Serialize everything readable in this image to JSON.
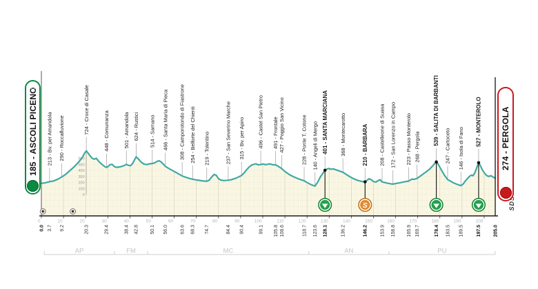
{
  "start": {
    "label": "185 - ASCOLI PICENO"
  },
  "finish": {
    "label": "274 - PERGOLA"
  },
  "branding": {
    "sds": "SDS"
  },
  "chart_data": {
    "type": "area",
    "title": "",
    "xlabel": "km",
    "ylabel": "elevation (m)",
    "xlim": [
      0,
      205.0
    ],
    "total_km_label": "205.0",
    "axis_scale_ticks": [
      "0",
      "10",
      "20",
      "30",
      "40",
      "50",
      "60",
      "70",
      "80",
      "90",
      "100",
      "110",
      "120",
      "130",
      "140",
      "150",
      "160",
      "170",
      "180",
      "190",
      "200"
    ],
    "elevation_ruler": {
      "at_km": 20.3,
      "values": [
        "600",
        "500",
        "400",
        "300",
        "200",
        "100",
        "0"
      ]
    },
    "km_marks": [
      {
        "km": 0.0,
        "text": "0.0",
        "bold": true
      },
      {
        "km": 3.7,
        "text": "3.7"
      },
      {
        "km": 9.2,
        "text": "9.2"
      },
      {
        "km": 20.3,
        "text": "20.3"
      },
      {
        "km": 29.4,
        "text": "29.4"
      },
      {
        "km": 38.4,
        "text": "38.4"
      },
      {
        "km": 42.8,
        "text": "42.8"
      },
      {
        "km": 50.1,
        "text": "50.1"
      },
      {
        "km": 56.0,
        "text": "56.0"
      },
      {
        "km": 63.6,
        "text": "63.6"
      },
      {
        "km": 68.3,
        "text": "68.3"
      },
      {
        "km": 74.7,
        "text": "74.7"
      },
      {
        "km": 84.4,
        "text": "84.4"
      },
      {
        "km": 90.4,
        "text": "90.4"
      },
      {
        "km": 99.1,
        "text": "99.1"
      },
      {
        "km": 105.8,
        "text": "105.8"
      },
      {
        "km": 108.6,
        "text": "108.6"
      },
      {
        "km": 118.7,
        "text": "118.7"
      },
      {
        "km": 123.6,
        "text": "123.6"
      },
      {
        "km": 128.1,
        "text": "128.1",
        "bold": true
      },
      {
        "km": 136.2,
        "text": "136.2"
      },
      {
        "km": 146.2,
        "text": "146.2",
        "bold": true
      },
      {
        "km": 153.9,
        "text": "153.9"
      },
      {
        "km": 158.8,
        "text": "158.8"
      },
      {
        "km": 165.9,
        "text": "165.9"
      },
      {
        "km": 169.7,
        "text": "169.7"
      },
      {
        "km": 178.4,
        "text": "178.4",
        "bold": true
      },
      {
        "km": 183.5,
        "text": "183.5"
      },
      {
        "km": 189.5,
        "text": "189.5"
      },
      {
        "km": 197.5,
        "text": "197.5",
        "bold": true
      },
      {
        "km": 205.0,
        "text": "205.0",
        "bold": true
      }
    ],
    "waypoints": [
      {
        "km": 3.7,
        "elev": 213,
        "label": "213 - Bv. per Amandola"
      },
      {
        "km": 9.2,
        "elev": 290,
        "label": "290 - Roccafluvione"
      },
      {
        "km": 20.3,
        "elev": 724,
        "label": "724 - Croce di Casale",
        "ruler": true
      },
      {
        "km": 29.4,
        "elev": 448,
        "label": "448 - Comunanza"
      },
      {
        "km": 38.4,
        "elev": 501,
        "label": "501 - Amandola"
      },
      {
        "km": 42.8,
        "elev": 624,
        "label": "624 - Rustici"
      },
      {
        "km": 50.1,
        "elev": 514,
        "label": "514 - Sarnano"
      },
      {
        "km": 56.0,
        "elev": 466,
        "label": "466 - Santa Maria di Pieca"
      },
      {
        "km": 63.6,
        "elev": 308,
        "label": "308 - Camporotondo di Fiastrone"
      },
      {
        "km": 68.3,
        "elev": 254,
        "label": "254 - Belforte del Chienti"
      },
      {
        "km": 74.7,
        "elev": 219,
        "label": "219 - Tolentino"
      },
      {
        "km": 84.4,
        "elev": 237,
        "label": "237 - San Severino Marche"
      },
      {
        "km": 90.4,
        "elev": 315,
        "label": "315 - Bv. per Apiro"
      },
      {
        "km": 99.1,
        "elev": 496,
        "label": "496 - Castel San Pietro"
      },
      {
        "km": 105.8,
        "elev": 491,
        "label": "491 - Frontale"
      },
      {
        "km": 108.6,
        "elev": 427,
        "label": "427 - Poggio San Vicino"
      },
      {
        "km": 118.7,
        "elev": 228,
        "label": "228 - Ponte T. Cotone"
      },
      {
        "km": 123.6,
        "elev": 140,
        "label": "140 - Angeli di Mergo"
      },
      {
        "km": 128.1,
        "elev": 401,
        "label": "401 - SANTA MARCIANA",
        "bold": true,
        "marker": "gpm"
      },
      {
        "km": 136.2,
        "elev": 368,
        "label": "368 - Montecarotto"
      },
      {
        "km": 146.2,
        "elev": 210,
        "label": "210 - BARBARA",
        "bold": true,
        "marker": "sprint"
      },
      {
        "km": 153.9,
        "elev": 208,
        "label": "208 - Castelleone di Suasa"
      },
      {
        "km": 158.8,
        "elev": 172,
        "label": "172 - San Lorenzo in Campo"
      },
      {
        "km": 165.9,
        "elev": 223,
        "label": "223 - Passo Monterolo"
      },
      {
        "km": 169.7,
        "elev": 268,
        "label": "268 - Pergola"
      },
      {
        "km": 178.4,
        "elev": 539,
        "label": "539 - SALITA DI BARBANTI",
        "bold": true,
        "marker": "gpm"
      },
      {
        "km": 183.5,
        "elev": 247,
        "label": "247 - Cartoceto"
      },
      {
        "km": 189.5,
        "elev": 146,
        "label": "146 - Isola di Fano"
      },
      {
        "km": 197.5,
        "elev": 527,
        "label": "527 - MONTEROLO",
        "bold": true,
        "marker": "gpm"
      }
    ],
    "regions": [
      {
        "label": "AP",
        "from": 1.3,
        "to": 33
      },
      {
        "label": "FM",
        "from": 33,
        "to": 48
      },
      {
        "label": "MC",
        "from": 48,
        "to": 120.8
      },
      {
        "label": "AN",
        "from": 120.8,
        "to": 157
      },
      {
        "label": "PU",
        "from": 157,
        "to": 205
      }
    ],
    "road_markers_km": [
      0.7,
      14.2
    ],
    "profile": [
      [
        0,
        185
      ],
      [
        1.5,
        192
      ],
      [
        3.7,
        213
      ],
      [
        5.5,
        225
      ],
      [
        7.5,
        255
      ],
      [
        9.2,
        290
      ],
      [
        11,
        335
      ],
      [
        13,
        400
      ],
      [
        15,
        465
      ],
      [
        17,
        545
      ],
      [
        18.5,
        615
      ],
      [
        19.5,
        685
      ],
      [
        20.3,
        724
      ],
      [
        21,
        690
      ],
      [
        22,
        640
      ],
      [
        23,
        600
      ],
      [
        23.8,
        585
      ],
      [
        24.8,
        600
      ],
      [
        26,
        545
      ],
      [
        27.5,
        495
      ],
      [
        28.5,
        465
      ],
      [
        29.4,
        448
      ],
      [
        30.3,
        470
      ],
      [
        31,
        495
      ],
      [
        32,
        498
      ],
      [
        33,
        462
      ],
      [
        34,
        450
      ],
      [
        35.5,
        458
      ],
      [
        36.5,
        468
      ],
      [
        37.5,
        482
      ],
      [
        38.4,
        501
      ],
      [
        39.3,
        484
      ],
      [
        40.3,
        478
      ],
      [
        41.3,
        520
      ],
      [
        42,
        570
      ],
      [
        42.8,
        624
      ],
      [
        43.8,
        590
      ],
      [
        45,
        540
      ],
      [
        46.3,
        505
      ],
      [
        47.5,
        495
      ],
      [
        48.7,
        508
      ],
      [
        50.1,
        514
      ],
      [
        51.2,
        525
      ],
      [
        52.3,
        550
      ],
      [
        53.2,
        560
      ],
      [
        54.2,
        535
      ],
      [
        55.2,
        498
      ],
      [
        56,
        466
      ],
      [
        57.5,
        432
      ],
      [
        59,
        402
      ],
      [
        61,
        362
      ],
      [
        62.5,
        330
      ],
      [
        63.6,
        308
      ],
      [
        65.5,
        282
      ],
      [
        67,
        265
      ],
      [
        68.3,
        254
      ],
      [
        70,
        241
      ],
      [
        72.5,
        227
      ],
      [
        74.7,
        219
      ],
      [
        75.8,
        238
      ],
      [
        77,
        295
      ],
      [
        78,
        332
      ],
      [
        79,
        318
      ],
      [
        80,
        262
      ],
      [
        81,
        240
      ],
      [
        82.5,
        231
      ],
      [
        84.4,
        237
      ],
      [
        86,
        248
      ],
      [
        88,
        272
      ],
      [
        90.4,
        315
      ],
      [
        91.5,
        355
      ],
      [
        92.8,
        415
      ],
      [
        94,
        462
      ],
      [
        95,
        488
      ],
      [
        96,
        502
      ],
      [
        97,
        508
      ],
      [
        97.8,
        492
      ],
      [
        99.1,
        496
      ],
      [
        100.2,
        506
      ],
      [
        101.2,
        494
      ],
      [
        102.3,
        502
      ],
      [
        103.3,
        508
      ],
      [
        104.5,
        492
      ],
      [
        105.8,
        491
      ],
      [
        107.2,
        462
      ],
      [
        108.6,
        427
      ],
      [
        110,
        382
      ],
      [
        112,
        330
      ],
      [
        114,
        292
      ],
      [
        116,
        262
      ],
      [
        117.5,
        242
      ],
      [
        118.7,
        228
      ],
      [
        120,
        198
      ],
      [
        121.8,
        165
      ],
      [
        123.6,
        140
      ],
      [
        124.8,
        205
      ],
      [
        126,
        290
      ],
      [
        127.2,
        355
      ],
      [
        128.1,
        401
      ],
      [
        129,
        422
      ],
      [
        130,
        432
      ],
      [
        130.8,
        418
      ],
      [
        131.8,
        425
      ],
      [
        132.8,
        412
      ],
      [
        134,
        398
      ],
      [
        135,
        385
      ],
      [
        136.2,
        368
      ],
      [
        137.5,
        338
      ],
      [
        139,
        302
      ],
      [
        141,
        262
      ],
      [
        143,
        232
      ],
      [
        145,
        215
      ],
      [
        146.2,
        210
      ],
      [
        147,
        232
      ],
      [
        148,
        262
      ],
      [
        149,
        245
      ],
      [
        150,
        216
      ],
      [
        151,
        206
      ],
      [
        152,
        228
      ],
      [
        153,
        246
      ],
      [
        153.9,
        208
      ],
      [
        155,
        200
      ],
      [
        156.5,
        186
      ],
      [
        158,
        176
      ],
      [
        158.8,
        172
      ],
      [
        160,
        182
      ],
      [
        162,
        196
      ],
      [
        164,
        210
      ],
      [
        165.9,
        223
      ],
      [
        166.8,
        242
      ],
      [
        167.4,
        256
      ],
      [
        168.4,
        251
      ],
      [
        169.7,
        268
      ],
      [
        171,
        302
      ],
      [
        172.5,
        342
      ],
      [
        174,
        382
      ],
      [
        175.5,
        425
      ],
      [
        176.8,
        478
      ],
      [
        177.8,
        520
      ],
      [
        178.4,
        539
      ],
      [
        179.2,
        505
      ],
      [
        180,
        450
      ],
      [
        181,
        385
      ],
      [
        182,
        322
      ],
      [
        183.5,
        247
      ],
      [
        184.8,
        222
      ],
      [
        186,
        196
      ],
      [
        187.5,
        172
      ],
      [
        189.5,
        146
      ],
      [
        190.5,
        175
      ],
      [
        191.5,
        225
      ],
      [
        192.5,
        268
      ],
      [
        193.5,
        305
      ],
      [
        194.3,
        322
      ],
      [
        195,
        312
      ],
      [
        195.8,
        360
      ],
      [
        196.6,
        440
      ],
      [
        197.5,
        527
      ],
      [
        198.3,
        478
      ],
      [
        199.2,
        408
      ],
      [
        200.2,
        352
      ],
      [
        201.2,
        312
      ],
      [
        202.2,
        300
      ],
      [
        203,
        312
      ],
      [
        203.8,
        295
      ],
      [
        204.4,
        282
      ],
      [
        205,
        274
      ]
    ],
    "colors": {
      "line": "#3fa8a3",
      "fill": "#f9f7e3",
      "grid": "#d9d3b8",
      "grid_light": "#e4dfc6",
      "axis": "#1a1a1a",
      "muted": "#b4b4b4",
      "region": "#c4c4c4",
      "wp_line": "#9a9a9a",
      "gpm_green": "#23a14b",
      "gpm_ring": "#0d6e31",
      "sprint_orange": "#e6892b",
      "sprint_ring": "#a5661c",
      "start_green": "#0b8a41",
      "finish_red": "#c9191d"
    }
  }
}
